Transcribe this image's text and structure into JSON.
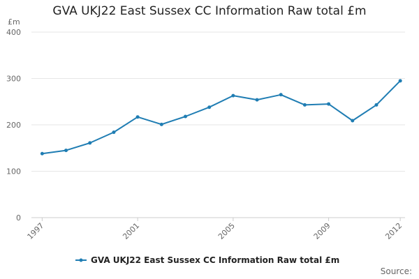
{
  "chart_data": {
    "type": "line",
    "title": "GVA UKJ22 East Sussex CC Information Raw total £m",
    "ylabel": "£m",
    "xlabel": "",
    "ylim": [
      0,
      400
    ],
    "yticks": [
      0,
      100,
      200,
      300,
      400
    ],
    "xticks": [
      1997,
      2001,
      2005,
      2009,
      2012
    ],
    "grid": true,
    "legend": "bottom-center",
    "series": [
      {
        "name": "GVA UKJ22 East Sussex CC Information Raw total £m",
        "color": "#1f7db3",
        "x": [
          1997,
          1998,
          1999,
          2000,
          2001,
          2002,
          2003,
          2004,
          2005,
          2006,
          2007,
          2008,
          2009,
          2010,
          2011,
          2012
        ],
        "values": [
          138,
          145,
          161,
          184,
          217,
          201,
          218,
          238,
          263,
          254,
          265,
          243,
          245,
          209,
          243,
          295
        ]
      }
    ]
  },
  "footer": {
    "source_label": "Source:"
  }
}
